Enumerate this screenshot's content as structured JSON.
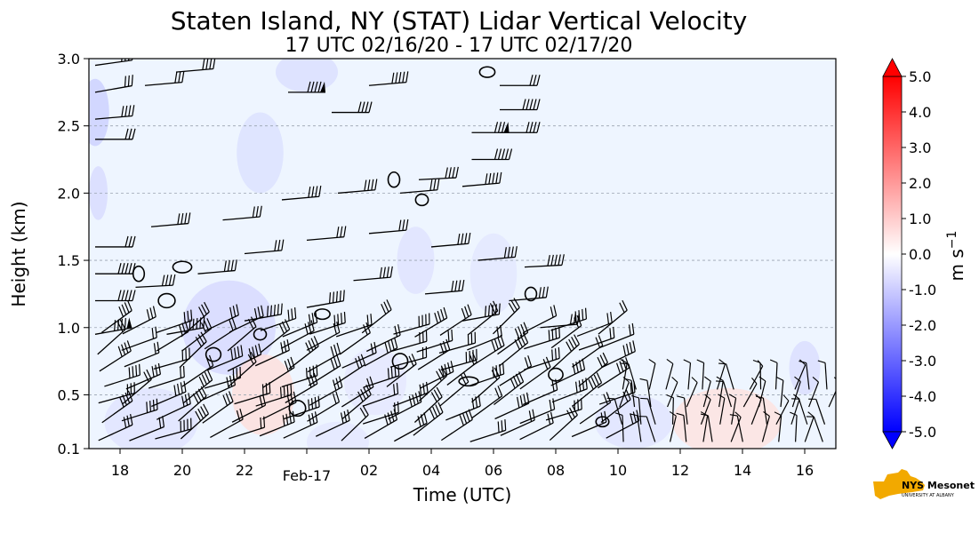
{
  "chart_data": {
    "type": "heatmap",
    "title": "Staten Island, NY (STAT) Lidar Vertical Velocity",
    "subtitle": "17 UTC 02/16/20 - 17 UTC 02/17/20",
    "xlabel": "Time (UTC)",
    "ylabel": "Height (km)",
    "x_ticks": [
      {
        "hour": 18,
        "label": "18"
      },
      {
        "hour": 20,
        "label": "20"
      },
      {
        "hour": 22,
        "label": "22"
      },
      {
        "hour": 24,
        "label": "Feb-17"
      },
      {
        "hour": 26,
        "label": "02"
      },
      {
        "hour": 28,
        "label": "04"
      },
      {
        "hour": 30,
        "label": "06"
      },
      {
        "hour": 32,
        "label": "08"
      },
      {
        "hour": 34,
        "label": "10"
      },
      {
        "hour": 36,
        "label": "12"
      },
      {
        "hour": 38,
        "label": "14"
      },
      {
        "hour": 40,
        "label": "16"
      }
    ],
    "xlim": [
      17,
      41
    ],
    "y_ticks": [
      {
        "value": 0.1,
        "label": "0.1"
      },
      {
        "value": 0.5,
        "label": "0.5"
      },
      {
        "value": 1.0,
        "label": "1.0"
      },
      {
        "value": 1.5,
        "label": "1.5"
      },
      {
        "value": 2.0,
        "label": "2.0"
      },
      {
        "value": 2.5,
        "label": "2.5"
      },
      {
        "value": 3.0,
        "label": "3.0"
      }
    ],
    "ylim": [
      0.1,
      3.0
    ],
    "grid_y": true,
    "colorbar": {
      "label": "m s",
      "label_exp": "−1",
      "range": [
        -5.0,
        5.0
      ],
      "ticks": [
        "5.0",
        "4.0",
        "3.0",
        "2.0",
        "1.0",
        "0.0",
        "-1.0",
        "-2.0",
        "-3.0",
        "-4.0",
        "-5.0"
      ],
      "low_color": "#0000ff",
      "mid_color": "#ffffff",
      "high_color": "#ff0000"
    },
    "background_color": "#eef5ff",
    "logo": {
      "text": "NYS Mesonet",
      "sub": "UNIVERSITY AT ALBANY"
    }
  }
}
